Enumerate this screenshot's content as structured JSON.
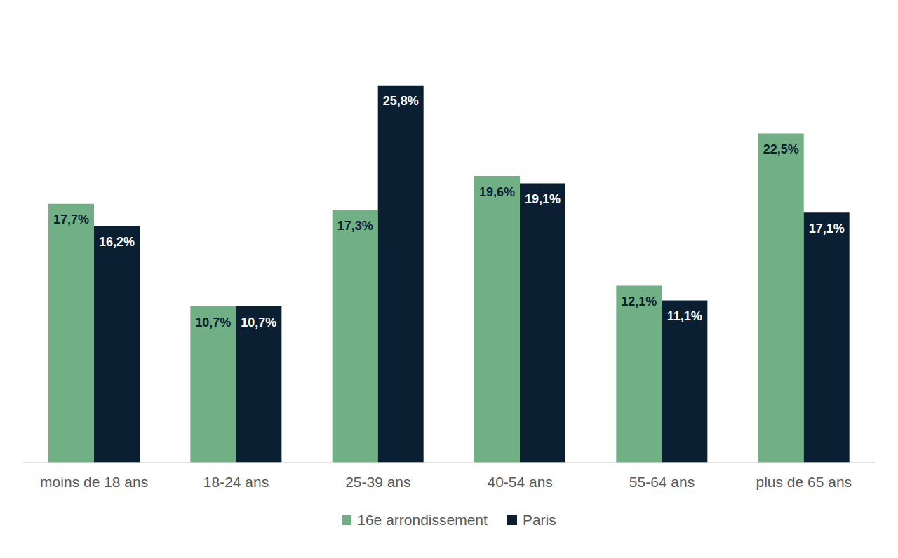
{
  "chart_data": {
    "type": "bar",
    "categories": [
      "moins de 18 ans",
      "18-24 ans",
      "25-39 ans",
      "40-54 ans",
      "55-64 ans",
      "plus de 65 ans"
    ],
    "series": [
      {
        "name": "16e arrondissement",
        "color": "#70b084",
        "values": [
          17.7,
          10.7,
          17.3,
          19.6,
          12.1,
          22.5
        ],
        "value_labels": [
          "17,7%",
          "10,7%",
          "17,3%",
          "19,6%",
          "12,1%",
          "22,5%"
        ]
      },
      {
        "name": "Paris",
        "color": "#0b1f33",
        "values": [
          16.2,
          10.7,
          25.8,
          19.1,
          11.1,
          17.1
        ],
        "value_labels": [
          "16,2%",
          "10,7%",
          "25,8%",
          "19,1%",
          "11,1%",
          "17,1%"
        ]
      }
    ],
    "ylim": [
      0,
      30
    ],
    "grid": false,
    "legend": "bottom",
    "data_labels": true,
    "tick_labels": "x"
  }
}
